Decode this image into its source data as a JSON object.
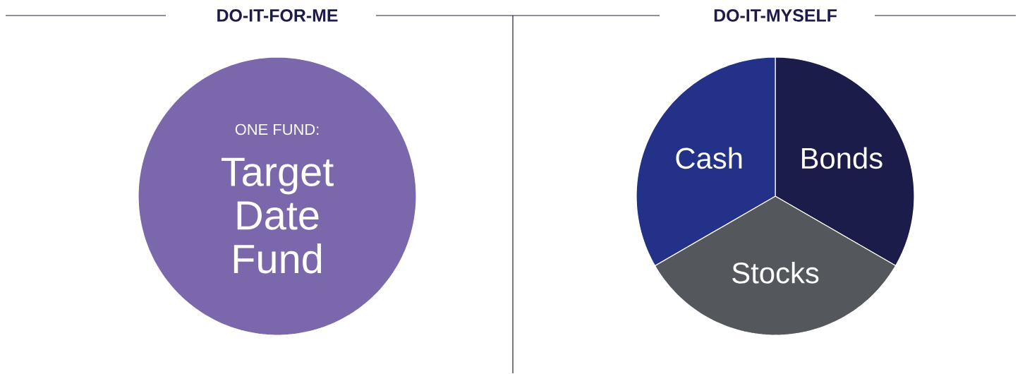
{
  "chart_data": [
    {
      "type": "pie",
      "title": "DO-IT-FOR-ME",
      "annotations": [
        "ONE FUND:"
      ],
      "categories": [
        "Target Date Fund"
      ],
      "values": [
        100
      ],
      "colors": [
        "#7b67ac"
      ]
    },
    {
      "type": "pie",
      "title": "DO-IT-MYSELF",
      "categories": [
        "Bonds",
        "Stocks",
        "Cash"
      ],
      "values": [
        33.33,
        33.33,
        33.34
      ],
      "colors": [
        "#1c1c4a",
        "#54575c",
        "#243189"
      ]
    }
  ]
}
